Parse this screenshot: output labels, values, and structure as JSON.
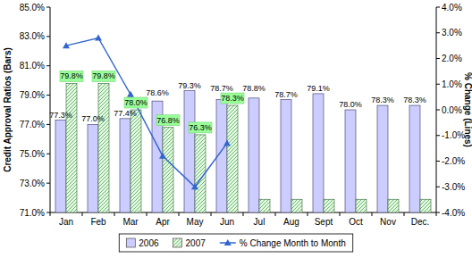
{
  "chart_data": {
    "type": "bar",
    "y_label": "Credit Approval Ratios (Bars)",
    "y2_label": "% Change (Lines)",
    "categories": [
      "Jan",
      "Feb",
      "Mar",
      "Apr",
      "May",
      "Jun",
      "Jul",
      "Aug",
      "Sept",
      "Oct",
      "Nov",
      "Dec."
    ],
    "series": [
      {
        "name": "2006",
        "type": "bar",
        "color": "#ccccff",
        "data_labels": true,
        "values": [
          77.3,
          77.0,
          77.4,
          78.6,
          79.3,
          78.7,
          78.8,
          78.7,
          79.1,
          78.0,
          78.3,
          78.3
        ],
        "value_labels": [
          "77.3%",
          "77.0%",
          "77.4%",
          "78.6%",
          "79.3%",
          "78.7%",
          "78.8%",
          "78.7%",
          "79.1%",
          "78.0%",
          "78.3%",
          "78.3%"
        ]
      },
      {
        "name": "2007",
        "type": "bar",
        "color": "#66bb66",
        "data_labels": true,
        "values": [
          79.8,
          79.8,
          78.0,
          76.8,
          76.3,
          78.3,
          71.9,
          71.9,
          71.9,
          71.9,
          71.9,
          71.9
        ],
        "value_labels": [
          "79.8%",
          "79.8%",
          "78.0%",
          "76.8%",
          "76.3%",
          "78.3%",
          null,
          null,
          null,
          null,
          null,
          null
        ]
      },
      {
        "name": "% Change Month to Month",
        "type": "line",
        "axis": "y2",
        "color": "#3366cc",
        "marker": "triangle",
        "line_style": "solid",
        "values": [
          2.5,
          2.8,
          0.6,
          -1.8,
          -3.0,
          -1.3,
          null,
          null,
          null,
          null,
          null,
          null
        ]
      }
    ],
    "ylim": [
      71,
      85
    ],
    "yticks": [
      {
        "value": 71,
        "label": "71.0%"
      },
      {
        "value": 73,
        "label": "73.0%"
      },
      {
        "value": 75,
        "label": "75.0%"
      },
      {
        "value": 77,
        "label": "77.0%"
      },
      {
        "value": 79,
        "label": "79.0%"
      },
      {
        "value": 81,
        "label": "81.0%"
      },
      {
        "value": 83,
        "label": "83.0%"
      },
      {
        "value": 85,
        "label": "85.0%"
      }
    ],
    "y2lim": [
      -4,
      4
    ],
    "y2ticks": [
      {
        "value": -4,
        "label": "-4.0%"
      },
      {
        "value": -3,
        "label": "-3.0%"
      },
      {
        "value": -2,
        "label": "-2.0%"
      },
      {
        "value": -1,
        "label": "-1.0%"
      },
      {
        "value": 0,
        "label": "0.0%"
      },
      {
        "value": 1,
        "label": "1.0%"
      },
      {
        "value": 2,
        "label": "2.0%"
      },
      {
        "value": 3,
        "label": "3.0%"
      },
      {
        "value": 4,
        "label": "4.0%"
      }
    ],
    "grid": false,
    "legend": "bottom"
  }
}
